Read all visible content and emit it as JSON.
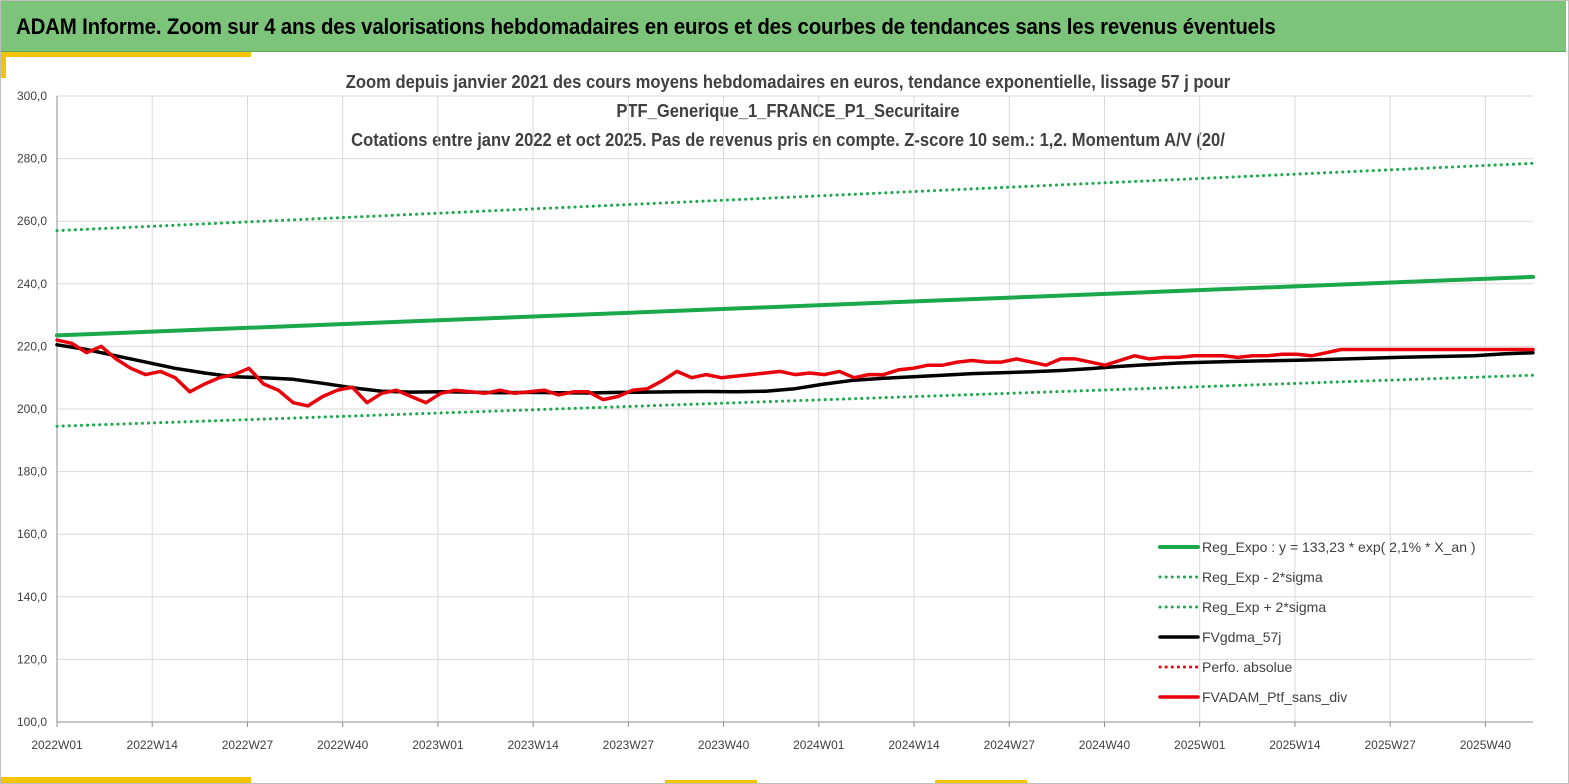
{
  "header": {
    "title": "ADAM Informe. Zoom sur 4 ans des valorisations hebdomadaires en euros et des courbes de tendances sans les revenus éventuels"
  },
  "colors": {
    "header_bg": "#7cc47a",
    "accent": "#f5c400",
    "trend_green": "#1aa84a",
    "ma_black": "#000000",
    "perf_red": "#e8000b",
    "grid": "#d9d9d9"
  },
  "chart_data": {
    "type": "line",
    "title_lines": [
      "Zoom depuis janvier 2021 des cours moyens hebdomadaires  en euros, tendance exponentielle, lissage 57 j pour",
      "PTF_Generique_1_FRANCE_P1_Securitaire",
      "Cotations entre janv 2022 et oct 2025. Pas de revenus pris en compte. Z-score 10 sem.: 1,2. Momentum A/V (20/"
    ],
    "ylim": [
      100,
      300
    ],
    "y_ticks": [
      "100,0",
      "120,0",
      "140,0",
      "160,0",
      "180,0",
      "200,0",
      "220,0",
      "240,0",
      "260,0",
      "280,0",
      "300,0"
    ],
    "x_ticks": [
      "2022W01",
      "2022W14",
      "2022W27",
      "2022W40",
      "2023W01",
      "2023W14",
      "2023W27",
      "2023W40",
      "2024W01",
      "2024W14",
      "2024W27",
      "2024W40",
      "2025W01",
      "2025W14",
      "2025W27",
      "2025W40"
    ],
    "x_range_weeks": [
      0,
      200
    ],
    "grid": true,
    "legend_position": "bottom-right",
    "series": [
      {
        "name": "Reg_Expo : y = 133,23 * exp( 2,1% *  X_an )",
        "style": "solid",
        "color": "#1aa84a",
        "x": [
          0,
          200
        ],
        "values": [
          223.5,
          242.2
        ]
      },
      {
        "name": "Reg_Exp - 2*sigma",
        "style": "dotted",
        "color": "#1aa84a",
        "x": [
          0,
          200
        ],
        "values": [
          194.5,
          210.8
        ]
      },
      {
        "name": "Reg_Exp + 2*sigma",
        "style": "dotted",
        "color": "#1aa84a",
        "x": [
          0,
          200
        ],
        "values": [
          257.0,
          278.5
        ]
      },
      {
        "name": "FVgdma_57j",
        "style": "solid",
        "color": "#000000",
        "x": [
          0,
          4,
          8,
          12,
          16,
          20,
          24,
          28,
          32,
          36,
          40,
          44,
          48,
          52,
          56,
          60,
          64,
          68,
          72,
          76,
          80,
          84,
          88,
          92,
          96,
          100,
          104,
          108,
          112,
          116,
          120,
          124,
          128,
          132,
          136,
          140,
          144,
          148,
          152,
          156,
          160,
          164,
          168,
          172,
          176,
          180,
          184,
          188,
          192,
          196,
          200
        ],
        "values": [
          220.5,
          219.0,
          217.0,
          215.0,
          213.0,
          211.5,
          210.3,
          210.0,
          209.5,
          208.2,
          206.8,
          205.7,
          205.4,
          205.5,
          205.4,
          205.2,
          205.3,
          205.2,
          205.1,
          205.3,
          205.4,
          205.5,
          205.6,
          205.5,
          205.7,
          206.5,
          208.0,
          209.2,
          209.8,
          210.3,
          210.8,
          211.3,
          211.6,
          211.9,
          212.3,
          212.9,
          213.6,
          214.2,
          214.7,
          215.0,
          215.2,
          215.4,
          215.6,
          215.8,
          216.1,
          216.4,
          216.6,
          216.8,
          217.0,
          217.6,
          218.0
        ]
      },
      {
        "name": "Perfo. absolue",
        "style": "dotted",
        "color": "#e8000b",
        "x": [],
        "values": []
      },
      {
        "name": "FVADAM_Ptf_sans_div",
        "style": "solid",
        "color": "#e8000b",
        "x": [
          0,
          2,
          4,
          6,
          8,
          10,
          12,
          14,
          16,
          18,
          20,
          22,
          24,
          26,
          28,
          30,
          32,
          34,
          36,
          38,
          40,
          42,
          44,
          46,
          48,
          50,
          52,
          54,
          56,
          58,
          60,
          62,
          64,
          66,
          68,
          70,
          72,
          74,
          76,
          78,
          80,
          82,
          84,
          86,
          88,
          90,
          92,
          94,
          96,
          98,
          100,
          102,
          104,
          106,
          108,
          110,
          112,
          114,
          116,
          118,
          120,
          122,
          124,
          126,
          128,
          130,
          132,
          134,
          136,
          138,
          140,
          142,
          144,
          146,
          148,
          150,
          152,
          154,
          156,
          158,
          160,
          162,
          164,
          166,
          168,
          170,
          172,
          174,
          176,
          178,
          180,
          182,
          184,
          186,
          188,
          190,
          192,
          194,
          196,
          198,
          200
        ],
        "values": [
          222.0,
          221.0,
          218.0,
          220.0,
          216.0,
          213.0,
          211.0,
          212.0,
          210.0,
          205.5,
          208.0,
          210.0,
          211.0,
          213.0,
          208.0,
          206.0,
          202.0,
          201.0,
          204.0,
          206.0,
          207.0,
          202.0,
          205.0,
          206.0,
          204.0,
          202.0,
          205.0,
          206.0,
          205.5,
          205.0,
          206.0,
          205.0,
          205.5,
          206.0,
          204.5,
          205.5,
          205.5,
          203.0,
          204.0,
          206.0,
          206.5,
          209.0,
          212.0,
          210.0,
          211.0,
          210.0,
          210.5,
          211.0,
          211.5,
          212.0,
          211.0,
          211.5,
          211.0,
          212.0,
          210.0,
          211.0,
          211.0,
          212.5,
          213.0,
          214.0,
          214.0,
          215.0,
          215.5,
          215.0,
          215.0,
          216.0,
          215.0,
          214.0,
          216.0,
          216.0,
          215.0,
          214.0,
          215.5,
          217.0,
          216.0,
          216.5,
          216.5,
          217.0,
          217.0,
          217.0,
          216.5,
          217.0,
          217.0,
          217.5,
          217.5,
          217.0,
          218.0,
          219.0,
          219.0,
          219.0,
          219.0,
          219.0,
          219.0,
          219.0,
          219.0,
          219.0,
          219.0,
          219.0,
          219.0,
          219.0,
          219.0
        ]
      }
    ]
  }
}
